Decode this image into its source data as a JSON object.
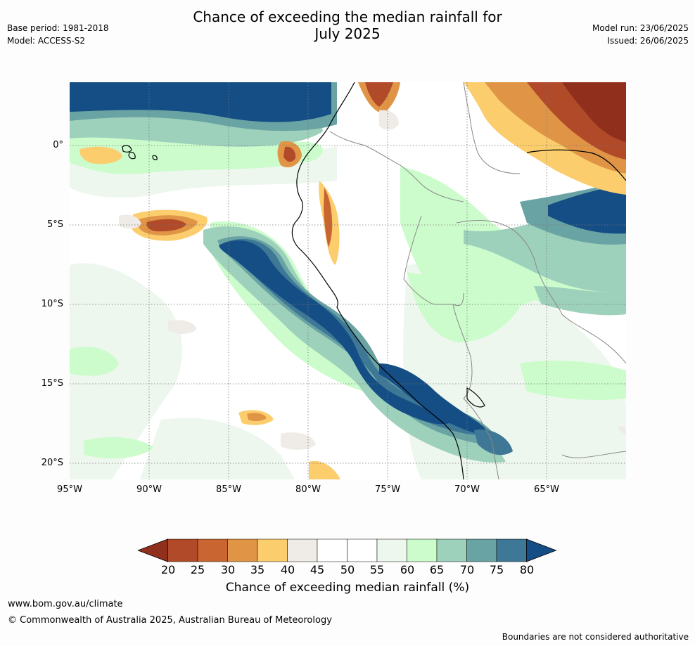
{
  "header": {
    "title_line1": "Chance of exceeding the median rainfall for",
    "title_line2": "July 2025",
    "base_period": "Base period: 1981-2018",
    "model": "Model: ACCESS-S2",
    "model_run": "Model run: 23/06/2025",
    "issued": "Issued: 26/06/2025"
  },
  "map": {
    "lat_labels": [
      "0°",
      "5°S",
      "10°S",
      "15°S",
      "20°S"
    ],
    "lon_labels": [
      "95°W",
      "90°W",
      "85°W",
      "80°W",
      "75°W",
      "70°W",
      "65°W"
    ],
    "colors": {
      "c15": "#8f2f1c",
      "c20": "#b04a28",
      "c25": "#c96530",
      "c30": "#e09446",
      "c35": "#fbcd6d",
      "c40": "#efebe6",
      "c45": "#ffffff",
      "c55": "#eef7ee",
      "c60": "#ccfccc",
      "c65": "#9dd1bb",
      "c70": "#6aa3a3",
      "c75": "#3e7896",
      "c80": "#154e85"
    }
  },
  "colorbar": {
    "labels": [
      "20",
      "25",
      "30",
      "35",
      "40",
      "45",
      "50",
      "55",
      "60",
      "65",
      "70",
      "75",
      "80"
    ],
    "colors": [
      "#8f2f1c",
      "#b04a28",
      "#c96530",
      "#e09446",
      "#fbcd6d",
      "#efebe6",
      "#ffffff",
      "#ffffff",
      "#eef7ee",
      "#ccfccc",
      "#9dd1bb",
      "#6aa3a3",
      "#3e7896",
      "#154e85"
    ],
    "title": "Chance of exceeding median rainfall (%)"
  },
  "footer": {
    "url": "www.bom.gov.au/climate",
    "copyright": "© Commonwealth of Australia 2025, Australian Bureau of Meteorology",
    "note": "Boundaries are not considered authoritative"
  }
}
